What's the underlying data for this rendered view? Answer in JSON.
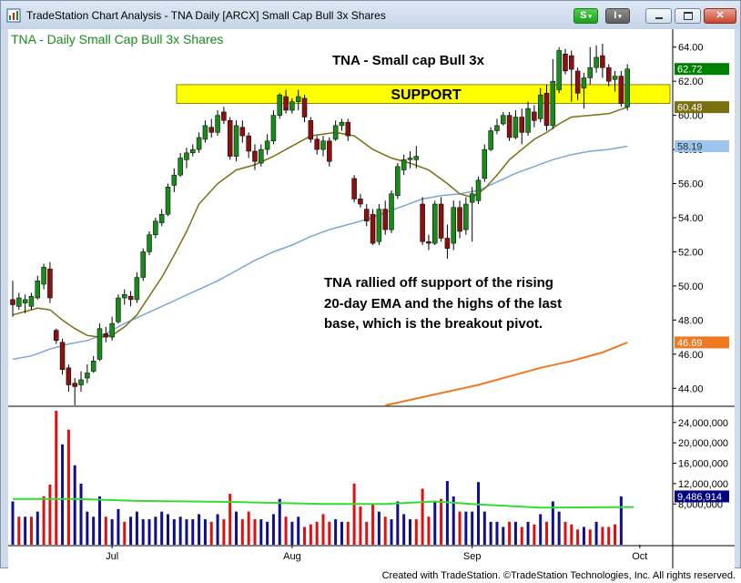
{
  "window": {
    "title": "TradeStation Chart Analysis - TNA Daily [ARCX] Small Cap Bull 3x Shares",
    "s_button": "S",
    "i_button": "I"
  },
  "footer": {
    "text": "Created with TradeStation. ©TradeStation Technologies, Inc. All rights reserved."
  },
  "colors": {
    "up": "#1a8a1a",
    "down": "#8b1111",
    "ema20": "#7a7010",
    "ma50": "#7aa6d8",
    "ma200": "#f07820",
    "support": "#ffff00",
    "vol_blue": "#10108c",
    "vol_red": "#e01010",
    "vol_avg": "#33dd33",
    "badge_price": "#008000",
    "badge_ema20": "#7a7010",
    "badge_ma50": "#9cc4ec",
    "badge_ma200": "#f07820",
    "badge_vol": "#000080"
  },
  "chart_data": {
    "type": "candlestick",
    "title": "TNA - Daily  Small Cap Bull 3x Shares",
    "annotation_title": "TNA - Small cap Bull 3x",
    "support_label": "SUPPORT",
    "support_range": [
      60.7,
      61.8
    ],
    "annotation_text": [
      "TNA rallied off support of the rising",
      "20-day EMA and the highs of the last",
      "base, which is the breakout pivot."
    ],
    "price_ticks": [
      "64.00",
      "62.00",
      "60.00",
      "58.00",
      "56.00",
      "54.00",
      "52.00",
      "50.00",
      "48.00",
      "46.00",
      "44.00"
    ],
    "price_ylim": [
      43.0,
      65.0
    ],
    "volume_ticks": [
      "24,000,000",
      "20,000,000",
      "16,000,000",
      "12,000,000",
      "8,000,000"
    ],
    "volume_ylim": [
      0,
      27000000
    ],
    "x_labels": [
      "Jul",
      "Aug",
      "Sep",
      "Oct"
    ],
    "badges": {
      "last": "62.72",
      "ema20": "60.48",
      "ma50": "58.19",
      "ma200": "46.69",
      "volume": "9,486,914"
    },
    "candles": [
      [
        49.2,
        48.9,
        50.3,
        48.2
      ],
      [
        48.8,
        49.3,
        49.6,
        48.6
      ],
      [
        49.0,
        49.2,
        49.5,
        48.4
      ],
      [
        48.8,
        49.4,
        49.6,
        48.6
      ],
      [
        49.3,
        50.3,
        50.6,
        49.2
      ],
      [
        50.1,
        51.1,
        51.3,
        49.8
      ],
      [
        51.0,
        49.3,
        51.4,
        49.0
      ],
      [
        47.4,
        46.8,
        47.5,
        46.6
      ],
      [
        46.7,
        45.1,
        46.9,
        44.8
      ],
      [
        45.2,
        44.2,
        45.4,
        43.8
      ],
      [
        44.3,
        44.1,
        44.6,
        43.0
      ],
      [
        44.2,
        44.5,
        45.0,
        43.8
      ],
      [
        44.6,
        44.9,
        45.4,
        44.3
      ],
      [
        45.0,
        45.6,
        45.9,
        44.9
      ],
      [
        45.7,
        47.5,
        47.8,
        45.6
      ],
      [
        47.2,
        47.0,
        47.6,
        46.7
      ],
      [
        47.0,
        47.8,
        48.2,
        46.8
      ],
      [
        47.9,
        49.3,
        49.5,
        47.8
      ],
      [
        49.3,
        49.5,
        49.8,
        48.9
      ],
      [
        49.4,
        49.2,
        49.7,
        48.8
      ],
      [
        49.2,
        50.5,
        50.8,
        49.0
      ],
      [
        50.5,
        52.0,
        52.2,
        50.3
      ],
      [
        52.0,
        53.0,
        53.2,
        51.8
      ],
      [
        53.0,
        53.8,
        54.0,
        52.8
      ],
      [
        53.7,
        54.2,
        54.5,
        53.5
      ],
      [
        54.2,
        55.8,
        56.0,
        54.1
      ],
      [
        55.9,
        56.5,
        56.9,
        55.5
      ],
      [
        56.5,
        57.5,
        57.8,
        56.4
      ],
      [
        57.4,
        57.8,
        58.1,
        56.9
      ],
      [
        57.8,
        58.0,
        58.3,
        57.6
      ],
      [
        58.0,
        58.7,
        59.0,
        57.8
      ],
      [
        58.6,
        59.4,
        59.7,
        58.4
      ],
      [
        59.3,
        59.0,
        59.8,
        58.7
      ],
      [
        59.0,
        60.0,
        60.3,
        58.8
      ],
      [
        60.2,
        59.7,
        60.5,
        59.5
      ],
      [
        59.7,
        57.6,
        59.9,
        57.4
      ],
      [
        57.6,
        59.4,
        59.7,
        57.3
      ],
      [
        59.3,
        58.8,
        59.7,
        58.4
      ],
      [
        58.8,
        57.9,
        59.0,
        57.5
      ],
      [
        57.9,
        57.3,
        58.3,
        56.8
      ],
      [
        57.2,
        58.0,
        58.3,
        57.0
      ],
      [
        58.0,
        58.5,
        58.9,
        57.7
      ],
      [
        58.5,
        60.0,
        60.3,
        58.3
      ],
      [
        60.0,
        61.2,
        61.3,
        59.8
      ],
      [
        61.1,
        60.3,
        61.5,
        60.1
      ],
      [
        60.3,
        60.8,
        61.0,
        60.1
      ],
      [
        60.8,
        61.1,
        61.5,
        60.3
      ],
      [
        61.0,
        59.9,
        61.2,
        59.6
      ],
      [
        59.7,
        58.6,
        59.9,
        58.4
      ],
      [
        58.6,
        58.0,
        58.8,
        57.7
      ],
      [
        58.0,
        58.5,
        58.8,
        57.6
      ],
      [
        58.5,
        57.3,
        58.7,
        57.0
      ],
      [
        58.6,
        59.4,
        59.7,
        58.5
      ],
      [
        59.4,
        59.6,
        59.8,
        59.1
      ],
      [
        59.6,
        58.8,
        59.8,
        58.5
      ],
      [
        56.3,
        55.1,
        56.5,
        54.9
      ],
      [
        55.1,
        54.8,
        55.4,
        54.6
      ],
      [
        54.5,
        53.8,
        54.8,
        53.5
      ],
      [
        54.2,
        52.5,
        54.5,
        52.4
      ],
      [
        52.6,
        54.5,
        54.8,
        52.4
      ],
      [
        54.5,
        53.3,
        55.0,
        53.0
      ],
      [
        53.3,
        55.4,
        55.6,
        53.1
      ],
      [
        55.3,
        57.0,
        57.2,
        55.1
      ],
      [
        56.8,
        57.4,
        57.7,
        56.5
      ],
      [
        57.4,
        57.5,
        57.9,
        56.9
      ],
      [
        57.4,
        57.6,
        58.2,
        56.9
      ],
      [
        54.8,
        52.6,
        55.2,
        52.4
      ],
      [
        52.6,
        52.5,
        53.0,
        52.1
      ],
      [
        52.5,
        54.8,
        55.0,
        52.4
      ],
      [
        54.8,
        52.8,
        55.2,
        52.6
      ],
      [
        52.8,
        52.2,
        53.6,
        51.6
      ],
      [
        52.5,
        54.6,
        55.0,
        52.1
      ],
      [
        54.6,
        53.2,
        55.0,
        52.8
      ],
      [
        53.3,
        54.8,
        55.2,
        53.0
      ],
      [
        54.9,
        55.4,
        55.8,
        52.6
      ],
      [
        55.0,
        56.2,
        56.4,
        54.8
      ],
      [
        56.3,
        58.0,
        58.3,
        56.1
      ],
      [
        58.0,
        59.1,
        59.3,
        57.9
      ],
      [
        59.1,
        59.4,
        59.8,
        58.9
      ],
      [
        59.5,
        60.0,
        60.2,
        59.4
      ],
      [
        60.0,
        58.7,
        60.2,
        58.5
      ],
      [
        58.7,
        59.9,
        60.3,
        58.6
      ],
      [
        59.9,
        59.0,
        60.4,
        58.3
      ],
      [
        59.0,
        60.4,
        60.8,
        58.8
      ],
      [
        60.2,
        59.7,
        60.6,
        59.3
      ],
      [
        59.8,
        61.2,
        61.6,
        59.6
      ],
      [
        61.3,
        59.4,
        61.8,
        59.1
      ],
      [
        59.4,
        62.0,
        63.3,
        59.2
      ],
      [
        61.5,
        63.8,
        64.0,
        61.3
      ],
      [
        63.6,
        62.6,
        63.9,
        62.4
      ],
      [
        63.5,
        62.7,
        63.8,
        60.8
      ],
      [
        62.6,
        61.3,
        62.8,
        60.9
      ],
      [
        61.6,
        62.2,
        62.5,
        60.4
      ],
      [
        62.2,
        62.8,
        64.0,
        61.8
      ],
      [
        62.8,
        63.4,
        64.1,
        62.5
      ],
      [
        63.5,
        62.8,
        64.2,
        62.2
      ],
      [
        62.8,
        62.0,
        63.0,
        61.7
      ],
      [
        62.1,
        62.3,
        62.6,
        61.4
      ],
      [
        62.3,
        60.7,
        62.6,
        60.5
      ],
      [
        60.5,
        62.72,
        63.0,
        60.3
      ]
    ],
    "volumes": [
      [
        8.5,
        "blue"
      ],
      [
        5.5,
        "red"
      ],
      [
        5.5,
        "blue"
      ],
      [
        5.5,
        "red"
      ],
      [
        6.5,
        "blue"
      ],
      [
        9.5,
        "red"
      ],
      [
        11.8,
        "red"
      ],
      [
        26.3,
        "red"
      ],
      [
        19.7,
        "blue"
      ],
      [
        22.6,
        "red"
      ],
      [
        15.6,
        "blue"
      ],
      [
        12.0,
        "blue"
      ],
      [
        6.5,
        "blue"
      ],
      [
        5.5,
        "blue"
      ],
      [
        9.5,
        "blue"
      ],
      [
        5.5,
        "red"
      ],
      [
        5.0,
        "blue"
      ],
      [
        7.0,
        "blue"
      ],
      [
        4.5,
        "red"
      ],
      [
        5.5,
        "blue"
      ],
      [
        6.5,
        "blue"
      ],
      [
        5.0,
        "blue"
      ],
      [
        5.0,
        "blue"
      ],
      [
        5.5,
        "blue"
      ],
      [
        6.5,
        "blue"
      ],
      [
        6.0,
        "blue"
      ],
      [
        5.0,
        "blue"
      ],
      [
        5.5,
        "blue"
      ],
      [
        5.0,
        "blue"
      ],
      [
        5.0,
        "blue"
      ],
      [
        6.0,
        "blue"
      ],
      [
        5.0,
        "blue"
      ],
      [
        4.5,
        "red"
      ],
      [
        6.0,
        "blue"
      ],
      [
        5.0,
        "red"
      ],
      [
        10.0,
        "red"
      ],
      [
        6.5,
        "blue"
      ],
      [
        5.0,
        "red"
      ],
      [
        6.5,
        "red"
      ],
      [
        5.0,
        "red"
      ],
      [
        5.0,
        "blue"
      ],
      [
        4.5,
        "blue"
      ],
      [
        6.0,
        "blue"
      ],
      [
        9.0,
        "blue"
      ],
      [
        5.5,
        "red"
      ],
      [
        4.5,
        "blue"
      ],
      [
        5.5,
        "blue"
      ],
      [
        3.5,
        "red"
      ],
      [
        4.0,
        "red"
      ],
      [
        4.5,
        "red"
      ],
      [
        6.0,
        "red"
      ],
      [
        4.5,
        "red"
      ],
      [
        5.0,
        "blue"
      ],
      [
        4.5,
        "blue"
      ],
      [
        4.5,
        "red"
      ],
      [
        12.0,
        "red"
      ],
      [
        7.5,
        "red"
      ],
      [
        4.5,
        "red"
      ],
      [
        8.0,
        "red"
      ],
      [
        6.5,
        "blue"
      ],
      [
        5.5,
        "red"
      ],
      [
        5.0,
        "blue"
      ],
      [
        8.5,
        "blue"
      ],
      [
        6.0,
        "blue"
      ],
      [
        5.0,
        "blue"
      ],
      [
        5.0,
        "red"
      ],
      [
        11.0,
        "red"
      ],
      [
        5.5,
        "red"
      ],
      [
        8.5,
        "blue"
      ],
      [
        9.0,
        "red"
      ],
      [
        12.5,
        "blue"
      ],
      [
        9.5,
        "blue"
      ],
      [
        6.5,
        "red"
      ],
      [
        6.5,
        "blue"
      ],
      [
        6.5,
        "blue"
      ],
      [
        12.3,
        "blue"
      ],
      [
        6.5,
        "blue"
      ],
      [
        4.5,
        "blue"
      ],
      [
        4.5,
        "blue"
      ],
      [
        3.5,
        "blue"
      ],
      [
        4.5,
        "red"
      ],
      [
        4.5,
        "blue"
      ],
      [
        3.5,
        "red"
      ],
      [
        4.5,
        "blue"
      ],
      [
        4.0,
        "red"
      ],
      [
        6.0,
        "blue"
      ],
      [
        4.5,
        "red"
      ],
      [
        8.5,
        "blue"
      ],
      [
        6.5,
        "blue"
      ],
      [
        4.5,
        "red"
      ],
      [
        4.0,
        "red"
      ],
      [
        3.0,
        "red"
      ],
      [
        3.5,
        "blue"
      ],
      [
        3.0,
        "red"
      ],
      [
        4.5,
        "blue"
      ],
      [
        3.5,
        "red"
      ],
      [
        3.5,
        "red"
      ],
      [
        4.0,
        "red"
      ],
      [
        9.5,
        "blue"
      ]
    ],
    "volume_avg": [
      [
        0,
        9.0
      ],
      [
        10,
        9.0
      ],
      [
        20,
        8.6
      ],
      [
        35,
        8.4
      ],
      [
        50,
        8.0
      ],
      [
        60,
        8.0
      ],
      [
        68,
        8.5
      ],
      [
        75,
        7.9
      ],
      [
        85,
        7.3
      ],
      [
        100,
        7.4
      ]
    ],
    "ema20": [
      [
        0,
        48.3
      ],
      [
        2,
        48.5
      ],
      [
        4,
        48.7
      ],
      [
        6,
        48.6
      ],
      [
        8,
        48.0
      ],
      [
        10,
        47.5
      ],
      [
        12,
        47.1
      ],
      [
        14,
        47.0
      ],
      [
        16,
        47.1
      ],
      [
        18,
        47.6
      ],
      [
        20,
        48.3
      ],
      [
        22,
        49.4
      ],
      [
        24,
        50.5
      ],
      [
        26,
        51.8
      ],
      [
        28,
        53.2
      ],
      [
        30,
        54.8
      ],
      [
        33,
        56.0
      ],
      [
        36,
        56.8
      ],
      [
        39,
        57.1
      ],
      [
        42,
        57.6
      ],
      [
        45,
        58.2
      ],
      [
        48,
        58.8
      ],
      [
        52,
        59.0
      ],
      [
        55,
        58.8
      ],
      [
        58,
        58.0
      ],
      [
        61,
        57.5
      ],
      [
        64,
        57.2
      ],
      [
        67,
        56.8
      ],
      [
        70,
        56.0
      ],
      [
        72,
        55.4
      ],
      [
        74,
        55.2
      ],
      [
        76,
        55.7
      ],
      [
        78,
        56.5
      ],
      [
        80,
        57.4
      ],
      [
        82,
        58.0
      ],
      [
        84,
        58.6
      ],
      [
        86,
        59.0
      ],
      [
        88,
        59.5
      ],
      [
        90,
        59.9
      ],
      [
        93,
        60.0
      ],
      [
        96,
        60.1
      ],
      [
        99,
        60.48
      ]
    ],
    "ma50": [
      [
        0,
        45.7
      ],
      [
        3,
        45.9
      ],
      [
        6,
        46.3
      ],
      [
        9,
        46.6
      ],
      [
        12,
        46.8
      ],
      [
        15,
        47.2
      ],
      [
        18,
        47.8
      ],
      [
        21,
        48.3
      ],
      [
        24,
        48.8
      ],
      [
        27,
        49.3
      ],
      [
        30,
        49.8
      ],
      [
        33,
        50.3
      ],
      [
        36,
        50.9
      ],
      [
        39,
        51.5
      ],
      [
        42,
        52.0
      ],
      [
        45,
        52.4
      ],
      [
        48,
        52.9
      ],
      [
        51,
        53.3
      ],
      [
        54,
        53.6
      ],
      [
        57,
        53.9
      ],
      [
        60,
        54.3
      ],
      [
        63,
        54.7
      ],
      [
        66,
        55.1
      ],
      [
        69,
        55.3
      ],
      [
        72,
        55.4
      ],
      [
        75,
        55.6
      ],
      [
        78,
        56.1
      ],
      [
        81,
        56.6
      ],
      [
        84,
        57.0
      ],
      [
        87,
        57.4
      ],
      [
        90,
        57.7
      ],
      [
        93,
        57.9
      ],
      [
        96,
        58.0
      ],
      [
        99,
        58.19
      ]
    ],
    "ma200": [
      [
        60,
        43.0
      ],
      [
        65,
        43.4
      ],
      [
        70,
        43.8
      ],
      [
        75,
        44.2
      ],
      [
        80,
        44.7
      ],
      [
        85,
        45.2
      ],
      [
        90,
        45.6
      ],
      [
        95,
        46.1
      ],
      [
        99,
        46.69
      ]
    ]
  }
}
